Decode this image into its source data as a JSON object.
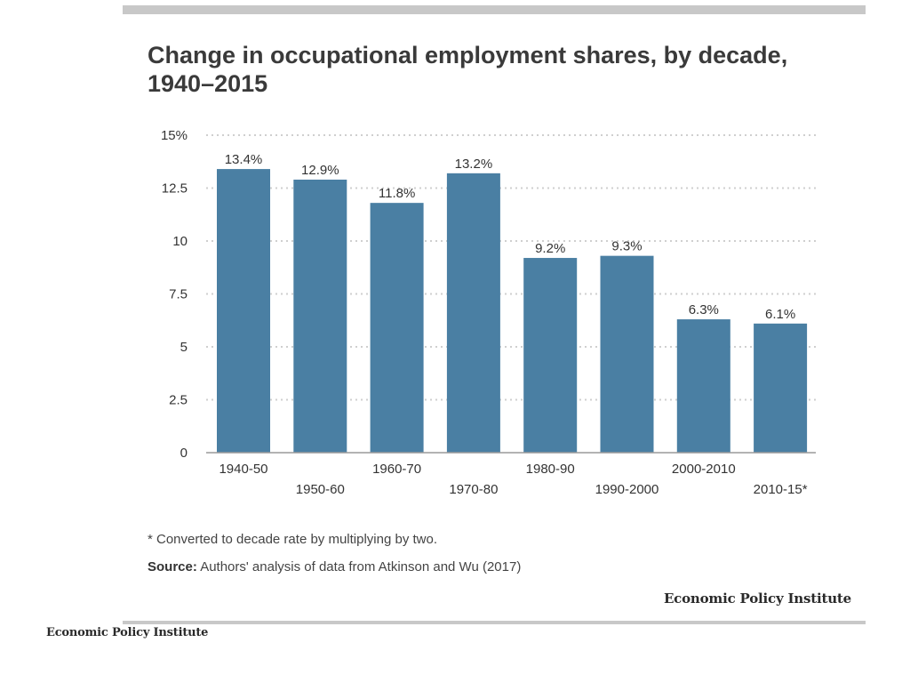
{
  "chart_data": {
    "type": "bar",
    "title": "Change in occupational employment shares, by decade, 1940–2015",
    "categories": [
      "1940-50",
      "1950-60",
      "1960-70",
      "1970-80",
      "1980-90",
      "1990-2000",
      "2000-2010",
      "2010-15*"
    ],
    "values": [
      13.4,
      12.9,
      11.8,
      13.2,
      9.2,
      9.3,
      6.3,
      6.1
    ],
    "value_labels": [
      "13.4%",
      "12.9%",
      "11.8%",
      "13.2%",
      "9.2%",
      "9.3%",
      "6.3%",
      "6.1%"
    ],
    "xlabel": "",
    "ylabel": "",
    "ylim": [
      0,
      15
    ],
    "yticks": [
      0,
      2.5,
      5,
      7.5,
      10,
      12.5,
      15
    ],
    "ytick_labels": [
      "0",
      "2.5",
      "5",
      "7.5",
      "10",
      "12.5",
      "15%"
    ],
    "grid": true,
    "bar_color": "#4a7fa3"
  },
  "header": {
    "title": "Change in occupational employment shares, by decade, 1940–2015"
  },
  "footer": {
    "note": "* Converted to decade rate by multiplying by two.",
    "source_label": "Source:",
    "source_text": "Authors' analysis of data from Atkinson and Wu (2017)",
    "brand": "Economic Policy Institute",
    "brand_small": "Economic Policy Institute"
  }
}
